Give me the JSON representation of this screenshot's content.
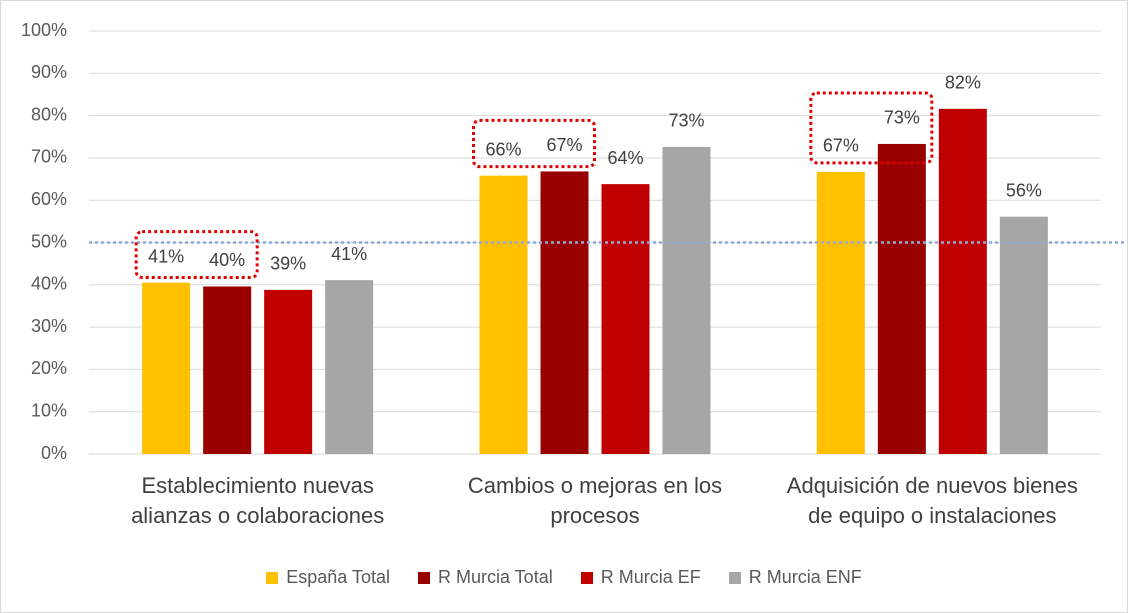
{
  "chart_data": {
    "type": "bar",
    "categories": [
      "Establecimiento nuevas\nalianzas o colaboraciones",
      "Cambios o mejoras en los\nprocesos",
      "Adquisición de nuevos bienes\nde equipo o instalaciones"
    ],
    "series": [
      {
        "name": "España Total",
        "color": "#ffc000",
        "values": [
          40.5,
          65.8,
          66.7
        ],
        "value_labels": [
          "41%",
          "66%",
          "67%"
        ]
      },
      {
        "name": "R Murcia Total",
        "color": "#990000",
        "values": [
          39.6,
          66.8,
          73.3
        ],
        "value_labels": [
          "40%",
          "67%",
          "73%"
        ]
      },
      {
        "name": "R Murcia EF",
        "color": "#c00000",
        "values": [
          38.8,
          63.8,
          81.6
        ],
        "value_labels": [
          "39%",
          "64%",
          "82%"
        ]
      },
      {
        "name": "R Murcia ENF",
        "color": "#a6a6a6",
        "values": [
          41.1,
          72.6,
          56.1
        ],
        "value_labels": [
          "41%",
          "73%",
          "56%"
        ]
      }
    ],
    "ylim": [
      0,
      100
    ],
    "yticks": [
      {
        "value": 0,
        "label": "0%"
      },
      {
        "value": 10,
        "label": "10%"
      },
      {
        "value": 20,
        "label": "20%"
      },
      {
        "value": 30,
        "label": "30%"
      },
      {
        "value": 40,
        "label": "40%"
      },
      {
        "value": 50,
        "label": "50%"
      },
      {
        "value": 60,
        "label": "60%"
      },
      {
        "value": 70,
        "label": "70%"
      },
      {
        "value": 80,
        "label": "80%"
      },
      {
        "value": 90,
        "label": "90%"
      },
      {
        "value": 100,
        "label": "100%"
      }
    ],
    "grid": true,
    "reference_line": {
      "value": 50,
      "color": "#8faadc"
    },
    "highlights": [
      {
        "category": 0,
        "series": [
          0,
          1
        ]
      },
      {
        "category": 1,
        "series": [
          0,
          1
        ]
      },
      {
        "category": 2,
        "series": [
          0,
          1
        ]
      }
    ],
    "legend": "bottom"
  }
}
